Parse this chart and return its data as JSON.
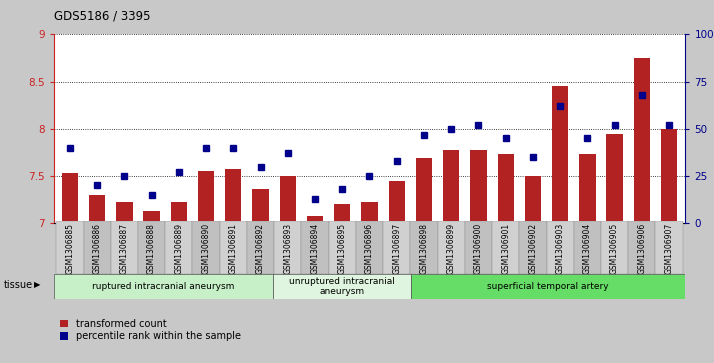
{
  "title": "GDS5186 / 3395",
  "samples": [
    "GSM1306885",
    "GSM1306886",
    "GSM1306887",
    "GSM1306888",
    "GSM1306889",
    "GSM1306890",
    "GSM1306891",
    "GSM1306892",
    "GSM1306893",
    "GSM1306894",
    "GSM1306895",
    "GSM1306896",
    "GSM1306897",
    "GSM1306898",
    "GSM1306899",
    "GSM1306900",
    "GSM1306901",
    "GSM1306902",
    "GSM1306903",
    "GSM1306904",
    "GSM1306905",
    "GSM1306906",
    "GSM1306907"
  ],
  "transformed_count": [
    7.53,
    7.3,
    7.22,
    7.13,
    7.22,
    7.55,
    7.58,
    7.36,
    7.5,
    7.08,
    7.2,
    7.22,
    7.45,
    7.69,
    7.78,
    7.78,
    7.73,
    7.5,
    8.45,
    7.73,
    7.95,
    8.75,
    8.0
  ],
  "percentile_rank": [
    40,
    20,
    25,
    15,
    27,
    40,
    40,
    30,
    37,
    13,
    18,
    25,
    33,
    47,
    50,
    52,
    45,
    35,
    62,
    45,
    52,
    68,
    52
  ],
  "groups": [
    {
      "label": "ruptured intracranial aneurysm",
      "start": 0,
      "end": 8,
      "color": "#c8f0c8"
    },
    {
      "label": "unruptured intracranial\naneurysm",
      "start": 8,
      "end": 13,
      "color": "#dff5df"
    },
    {
      "label": "superficial temporal artery",
      "start": 13,
      "end": 23,
      "color": "#66dd66"
    }
  ],
  "bar_color": "#b22222",
  "dot_color": "#00008b",
  "ylim_left": [
    7,
    9
  ],
  "ylim_right": [
    0,
    100
  ],
  "yticks_left": [
    7,
    7.5,
    8,
    8.5,
    9
  ],
  "yticks_right": [
    0,
    25,
    50,
    75,
    100
  ],
  "bg_color": "#c8c8c8",
  "plot_bg_color": "#ffffff",
  "xtick_bg_color": "#c8c8c8"
}
